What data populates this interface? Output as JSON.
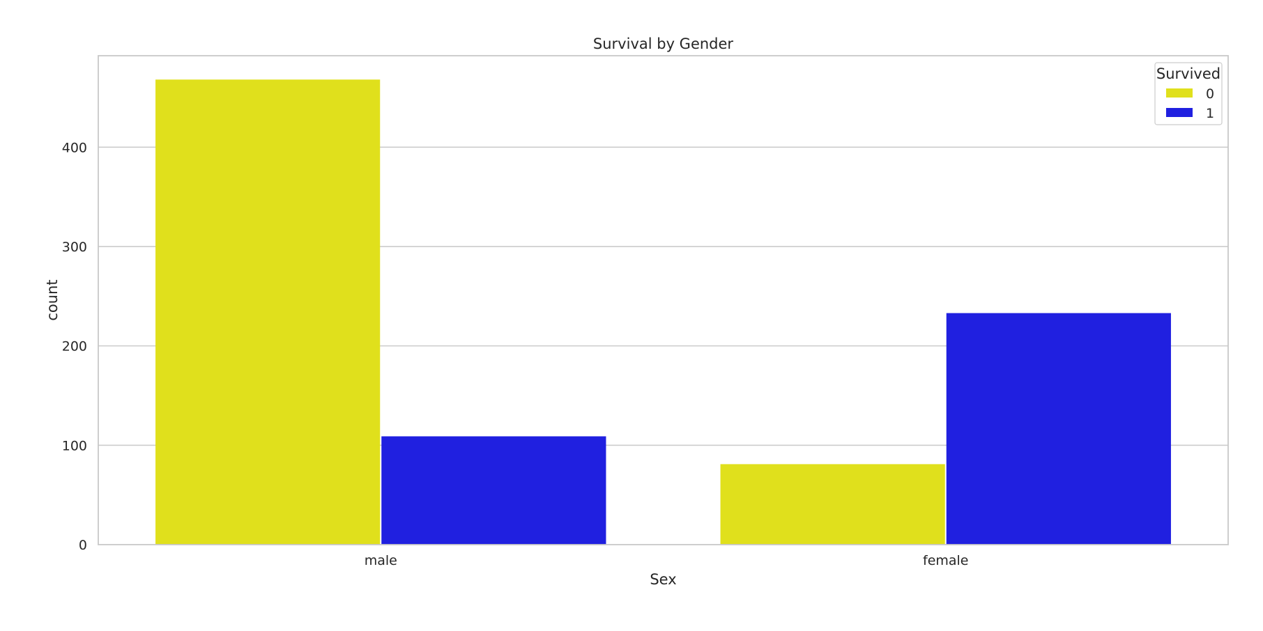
{
  "chart_data": {
    "type": "bar",
    "title": "Survival by Gender",
    "xlabel": "Sex",
    "ylabel": "count",
    "categories": [
      "male",
      "female"
    ],
    "series": [
      {
        "name": "0",
        "values": [
          468,
          81
        ],
        "color": "#e0e01c"
      },
      {
        "name": "1",
        "values": [
          109,
          233
        ],
        "color": "#2020e0"
      }
    ],
    "ylim": [
      0,
      492
    ],
    "yticks": [
      0,
      100,
      200,
      300,
      400
    ],
    "ytick_labels": [
      "0",
      "100",
      "200",
      "300",
      "400"
    ],
    "grid": "horizontal",
    "legend": {
      "title": "Survived",
      "position": "top-right"
    }
  }
}
